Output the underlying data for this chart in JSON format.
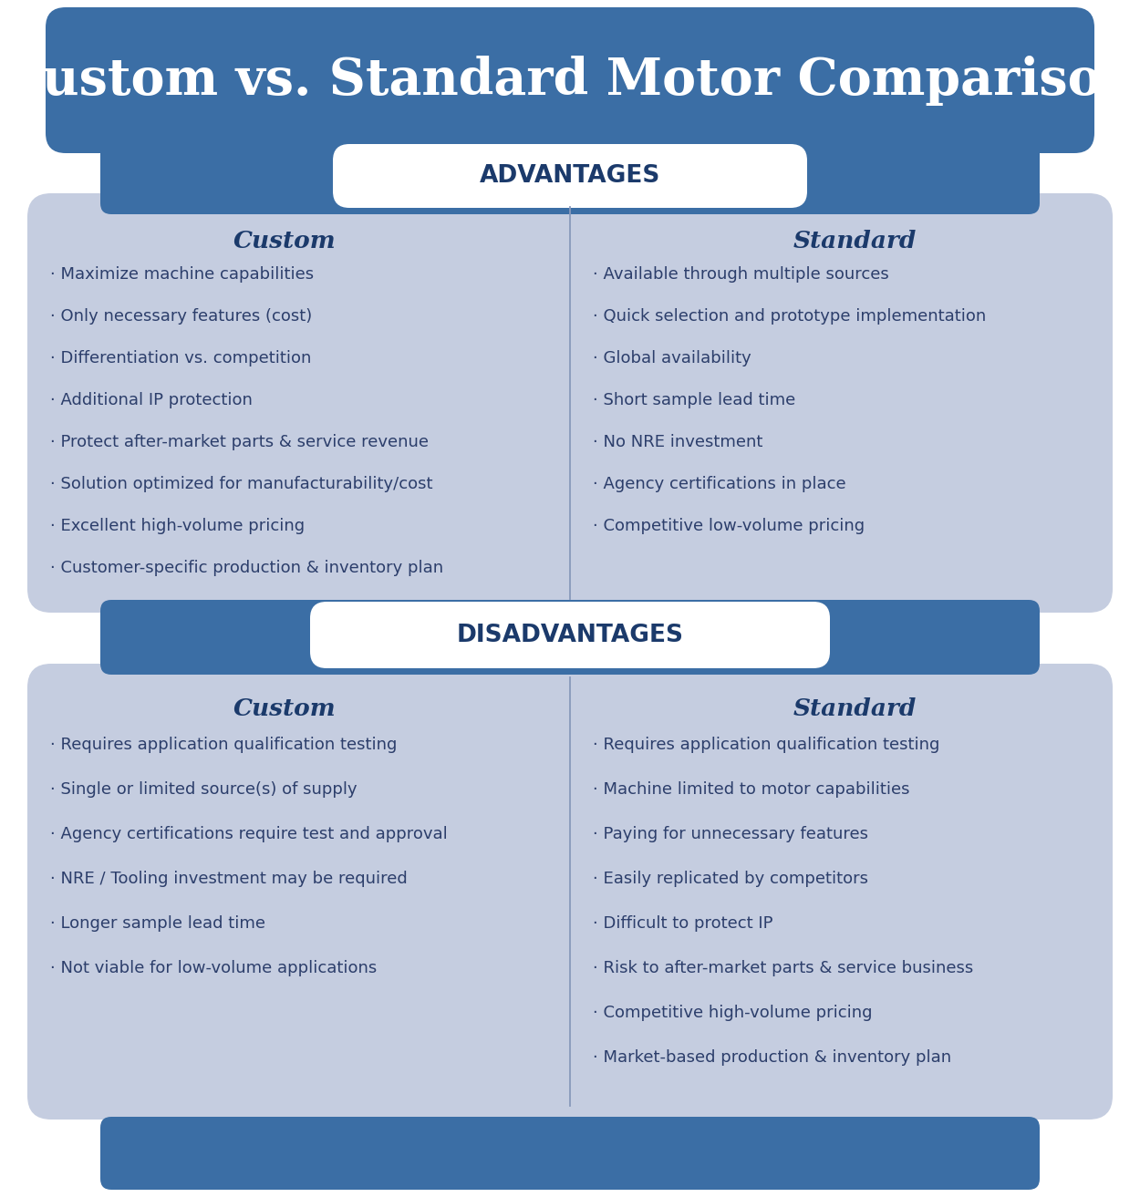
{
  "title": "Custom vs. Standard Motor Comparison",
  "title_color": "#FFFFFF",
  "header_bg_color": "#3B6EA5",
  "section_bg_color": "#C5CDE0",
  "tab_bg_color": "#FFFFFF",
  "col_header_color": "#1B3A6B",
  "bullet_text_color": "#2C3E6B",
  "divider_color": "#8899BB",
  "advantages_label": "ADVANTAGES",
  "disadvantages_label": "DISADVANTAGES",
  "custom_label": "Custom",
  "standard_label": "Standard",
  "adv_custom": [
    "Maximize machine capabilities",
    "Only necessary features (cost)",
    "Differentiation vs. competition",
    "Additional IP protection",
    "Protect after-market parts & service revenue",
    "Solution optimized for manufacturability/cost",
    "Excellent high-volume pricing",
    "Customer-specific production & inventory plan"
  ],
  "adv_standard": [
    "Available through multiple sources",
    "Quick selection and prototype implementation",
    "Global availability",
    "Short sample lead time",
    "No NRE investment",
    "Agency certifications in place",
    "Competitive low-volume pricing"
  ],
  "dis_custom": [
    "Requires application qualification testing",
    "Single or limited source(s) of supply",
    "Agency certifications require test and approval",
    "NRE / Tooling investment may be required",
    "Longer sample lead time",
    "Not viable for low-volume applications"
  ],
  "dis_standard": [
    "Requires application qualification testing",
    "Machine limited to motor capabilities",
    "Paying for unnecessary features",
    "Easily replicated by competitors",
    "Difficult to protect IP",
    "Risk to after-market parts & service business",
    "Competitive high-volume pricing",
    "Market-based production & inventory plan"
  ]
}
